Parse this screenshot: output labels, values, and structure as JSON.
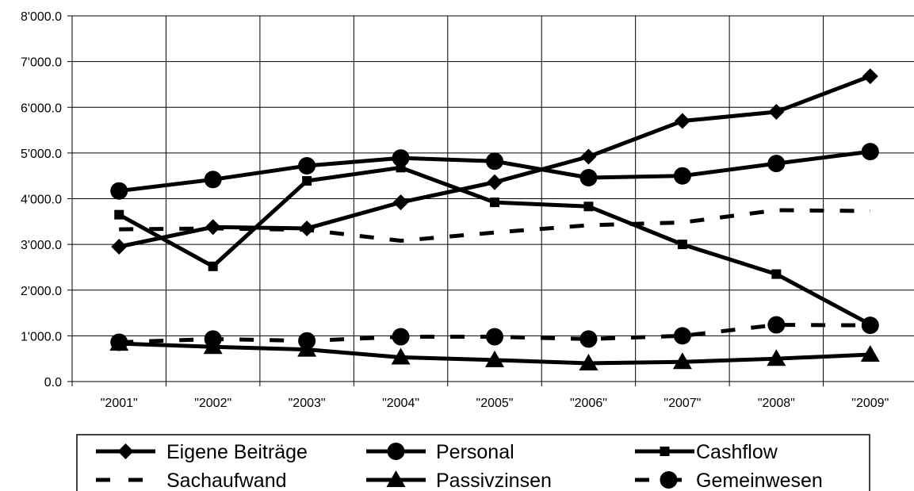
{
  "chart_data": {
    "type": "line",
    "categories": [
      "\"2001\"",
      "\"2002\"",
      "\"2003\"",
      "\"2004\"",
      "\"2005\"",
      "\"2006\"",
      "\"2007\"",
      "\"2008\"",
      "\"2009\""
    ],
    "ylim": [
      0,
      8000
    ],
    "y_ticks": [
      {
        "value": 0,
        "label": "0.0"
      },
      {
        "value": 1000,
        "label": "1'000.0"
      },
      {
        "value": 2000,
        "label": "2'000.0"
      },
      {
        "value": 3000,
        "label": "3'000.0"
      },
      {
        "value": 4000,
        "label": "4'000.0"
      },
      {
        "value": 5000,
        "label": "5'000.0"
      },
      {
        "value": 6000,
        "label": "6'000.0"
      },
      {
        "value": 7000,
        "label": "7'000.0"
      },
      {
        "value": 8000,
        "label": "8'000.0"
      }
    ],
    "grid": "vertical and horizontal",
    "legend_position": "bottom",
    "series": [
      {
        "name": "Eigene Beiträge",
        "marker": "diamond",
        "line": "solid",
        "values": [
          2950,
          3380,
          3350,
          3920,
          4360,
          4920,
          5700,
          5900,
          6680
        ]
      },
      {
        "name": "Personal",
        "marker": "circle",
        "line": "solid",
        "values": [
          4170,
          4420,
          4720,
          4890,
          4820,
          4460,
          4500,
          4770,
          5030
        ]
      },
      {
        "name": "Cashflow",
        "marker": "square",
        "line": "solid",
        "values": [
          3650,
          2520,
          4390,
          4680,
          3920,
          3830,
          3000,
          2350,
          1250
        ]
      },
      {
        "name": "Sachaufwand",
        "marker": "none",
        "line": "dashed",
        "values": [
          3330,
          3350,
          3320,
          3080,
          3260,
          3420,
          3480,
          3750,
          3730
        ]
      },
      {
        "name": "Passivzinsen",
        "marker": "triangle",
        "line": "solid",
        "values": [
          830,
          760,
          700,
          530,
          470,
          400,
          430,
          500,
          590
        ]
      },
      {
        "name": "Gemeinwesen",
        "marker": "circle",
        "line": "dashed",
        "values": [
          860,
          930,
          890,
          980,
          980,
          930,
          1000,
          1240,
          1230
        ]
      }
    ]
  }
}
